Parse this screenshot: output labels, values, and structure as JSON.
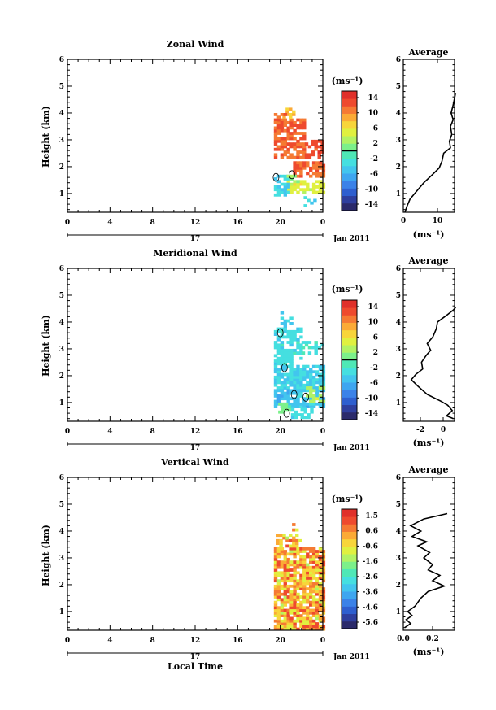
{
  "chart_data": [
    {
      "type": "heatmap",
      "title": "Zonal Wind",
      "ylabel": "Height (km)",
      "xlabel": "",
      "xticks": [
        "0",
        "4",
        "8",
        "12",
        "16",
        "20",
        "0"
      ],
      "date_label": "17",
      "date_suffix": "Jan 2011",
      "xlim": [
        0,
        24
      ],
      "ylim": [
        0.3,
        6
      ],
      "yticks": [
        "1",
        "2",
        "3",
        "4",
        "5",
        "6"
      ],
      "colorbar": {
        "unit": "(ms⁻¹)",
        "ticks": [
          "14",
          "10",
          "6",
          "2",
          "-2",
          "-6",
          "-10",
          "-14"
        ],
        "range": [
          -16,
          16
        ],
        "zero_line": true
      },
      "data_extent": {
        "time_start": 19.4,
        "time_end": 24,
        "height_min": 0.5,
        "height_max": 4.2
      },
      "blocks": [
        {
          "t0": 19.4,
          "t1": 22.3,
          "h0": 2.3,
          "h1": 3.8,
          "value": 12,
          "fill": 0.75
        },
        {
          "t0": 22.3,
          "t1": 24.0,
          "h0": 2.3,
          "h1": 3.0,
          "value": 13,
          "fill": 0.55
        },
        {
          "t0": 20.2,
          "t1": 21.2,
          "h0": 3.8,
          "h1": 4.2,
          "value": 8,
          "fill": 0.55
        },
        {
          "t0": 19.4,
          "t1": 20.4,
          "h0": 3.5,
          "h1": 4.0,
          "value": 11,
          "fill": 0.5
        },
        {
          "t0": 21.2,
          "t1": 24.0,
          "h0": 1.6,
          "h1": 2.2,
          "value": 12,
          "fill": 0.8
        },
        {
          "t0": 20.6,
          "t1": 24.0,
          "h0": 1.0,
          "h1": 1.5,
          "value": 5,
          "fill": 0.75
        },
        {
          "t0": 19.4,
          "t1": 20.8,
          "h0": 0.9,
          "h1": 1.7,
          "value": -4,
          "fill": 0.65
        },
        {
          "t0": 20.6,
          "t1": 21.6,
          "h0": 1.4,
          "h1": 1.7,
          "value": 2,
          "fill": 0.6
        },
        {
          "t0": 22.2,
          "t1": 23.8,
          "h0": 0.5,
          "h1": 0.9,
          "value": -4,
          "fill": 0.4
        }
      ],
      "contours": [
        {
          "t": 19.6,
          "h": 1.6
        },
        {
          "t": 21.1,
          "h": 1.7
        }
      ],
      "average": {
        "title": "Average",
        "xlabel": "(ms⁻¹)",
        "xlim": [
          0,
          15
        ],
        "xticks": [
          0,
          10
        ],
        "ylim": [
          0.3,
          6
        ],
        "yticks": [
          "1",
          "2",
          "3",
          "4",
          "5",
          "6"
        ],
        "profile": [
          [
            0.5,
            0.3
          ],
          [
            1.0,
            0.5
          ],
          [
            2.0,
            0.8
          ],
          [
            4.0,
            1.1
          ],
          [
            6.0,
            1.4
          ],
          [
            8.5,
            1.7
          ],
          [
            10.5,
            1.95
          ],
          [
            11.3,
            2.2
          ],
          [
            11.8,
            2.5
          ],
          [
            13.8,
            2.7
          ],
          [
            13.5,
            2.95
          ],
          [
            14.2,
            3.2
          ],
          [
            13.8,
            3.5
          ],
          [
            14.6,
            3.75
          ],
          [
            14.0,
            4.0
          ],
          [
            14.6,
            4.3
          ],
          [
            15.0,
            4.55
          ],
          [
            15.3,
            4.75
          ]
        ]
      }
    },
    {
      "type": "heatmap",
      "title": "Meridional Wind",
      "ylabel": "Height (km)",
      "xlabel": "",
      "xticks": [
        "0",
        "4",
        "8",
        "12",
        "16",
        "20",
        "0"
      ],
      "date_label": "17",
      "date_suffix": "Jan 2011",
      "xlim": [
        0,
        24
      ],
      "ylim": [
        0.3,
        6
      ],
      "yticks": [
        "1",
        "2",
        "3",
        "4",
        "5",
        "6"
      ],
      "colorbar": {
        "unit": "(ms⁻¹)",
        "ticks": [
          "14",
          "10",
          "6",
          "2",
          "-2",
          "-6",
          "-10",
          "-14"
        ],
        "range": [
          -16,
          16
        ],
        "zero_line": true
      },
      "data_extent": {
        "time_start": 19.4,
        "time_end": 24,
        "height_min": 0.4,
        "height_max": 4.4
      },
      "blocks": [
        {
          "t0": 19.4,
          "t1": 22.0,
          "h0": 2.4,
          "h1": 3.8,
          "value": -3,
          "fill": 0.65
        },
        {
          "t0": 22.0,
          "t1": 24.0,
          "h0": 2.8,
          "h1": 3.3,
          "value": -2,
          "fill": 0.45
        },
        {
          "t0": 19.4,
          "t1": 24.0,
          "h0": 1.5,
          "h1": 2.4,
          "value": -4,
          "fill": 0.8
        },
        {
          "t0": 19.4,
          "t1": 24.0,
          "h0": 0.8,
          "h1": 1.5,
          "value": -5,
          "fill": 0.7
        },
        {
          "t0": 19.8,
          "t1": 21.0,
          "h0": 0.6,
          "h1": 1.0,
          "value": 1,
          "fill": 0.6
        },
        {
          "t0": 21.0,
          "t1": 23.0,
          "h0": 0.4,
          "h1": 0.8,
          "value": -3,
          "fill": 0.5
        },
        {
          "t0": 20.0,
          "t1": 21.2,
          "h0": 3.8,
          "h1": 4.4,
          "value": -4,
          "fill": 0.45
        },
        {
          "t0": 22.4,
          "t1": 24.0,
          "h0": 1.0,
          "h1": 1.6,
          "value": 3,
          "fill": 0.45
        }
      ],
      "contours": [
        {
          "t": 20.0,
          "h": 3.6
        },
        {
          "t": 20.4,
          "h": 2.3
        },
        {
          "t": 21.3,
          "h": 1.3
        },
        {
          "t": 22.4,
          "h": 1.2
        },
        {
          "t": 20.6,
          "h": 0.6
        }
      ],
      "average": {
        "title": "Average",
        "xlabel": "(ms⁻¹)",
        "xlim": [
          -3.5,
          1
        ],
        "xticks": [
          -2,
          0
        ],
        "ylim": [
          0.3,
          6
        ],
        "yticks": [
          "1",
          "2",
          "3",
          "4",
          "5",
          "6"
        ],
        "profile": [
          [
            0.9,
            0.4
          ],
          [
            0.3,
            0.5
          ],
          [
            0.8,
            0.7
          ],
          [
            0.4,
            0.9
          ],
          [
            -0.2,
            1.05
          ],
          [
            -1.4,
            1.3
          ],
          [
            -2.2,
            1.6
          ],
          [
            -2.8,
            1.85
          ],
          [
            -2.4,
            2.05
          ],
          [
            -1.8,
            2.25
          ],
          [
            -1.9,
            2.5
          ],
          [
            -1.5,
            2.75
          ],
          [
            -1.1,
            2.95
          ],
          [
            -1.4,
            3.2
          ],
          [
            -0.9,
            3.45
          ],
          [
            -0.6,
            3.75
          ],
          [
            -0.5,
            4.0
          ],
          [
            0.3,
            4.25
          ],
          [
            0.9,
            4.45
          ],
          [
            1.1,
            4.55
          ]
        ]
      }
    },
    {
      "type": "heatmap",
      "title": "Vertical Wind",
      "ylabel": "Height (km)",
      "xlabel": "Local Time",
      "xticks": [
        "0",
        "4",
        "8",
        "12",
        "16",
        "20",
        "0"
      ],
      "date_label": "17",
      "date_suffix": "Jan 2011",
      "xlim": [
        0,
        24
      ],
      "ylim": [
        0.3,
        6
      ],
      "yticks": [
        "1",
        "2",
        "3",
        "4",
        "5",
        "6"
      ],
      "colorbar": {
        "unit": "(ms⁻¹)",
        "ticks": [
          "1.5",
          "0.6",
          "-0.6",
          "-1.6",
          "-2.6",
          "-3.6",
          "-4.6",
          "-5.6"
        ],
        "range": [
          -6,
          2
        ],
        "zero_line": false
      },
      "data_extent": {
        "time_start": 19.4,
        "time_end": 24,
        "height_min": 0.3,
        "height_max": 4.3
      },
      "blocks": [
        {
          "t0": 19.4,
          "t1": 24.0,
          "h0": 0.3,
          "h1": 3.4,
          "value": 0.2,
          "fill": 0.85
        },
        {
          "t0": 19.6,
          "t1": 22.0,
          "h0": 3.4,
          "h1": 3.9,
          "value": 0.1,
          "fill": 0.55
        },
        {
          "t0": 20.8,
          "t1": 21.6,
          "h0": 3.9,
          "h1": 4.3,
          "value": 0.3,
          "fill": 0.3
        }
      ],
      "contours": [],
      "average": {
        "title": "Average",
        "xlabel": "(ms⁻¹)",
        "xlim": [
          0,
          0.35
        ],
        "xticks": [
          0.0,
          0.2
        ],
        "ylim": [
          0.3,
          6
        ],
        "yticks": [
          "1",
          "2",
          "3",
          "4",
          "5",
          "6"
        ],
        "profile": [
          [
            0.01,
            0.4
          ],
          [
            0.05,
            0.55
          ],
          [
            0.02,
            0.7
          ],
          [
            0.06,
            0.85
          ],
          [
            0.03,
            1.0
          ],
          [
            0.08,
            1.2
          ],
          [
            0.12,
            1.5
          ],
          [
            0.17,
            1.75
          ],
          [
            0.28,
            1.95
          ],
          [
            0.2,
            2.15
          ],
          [
            0.25,
            2.35
          ],
          [
            0.17,
            2.55
          ],
          [
            0.2,
            2.75
          ],
          [
            0.14,
            3.0
          ],
          [
            0.18,
            3.2
          ],
          [
            0.1,
            3.45
          ],
          [
            0.16,
            3.6
          ],
          [
            0.06,
            3.8
          ],
          [
            0.12,
            4.0
          ],
          [
            0.05,
            4.2
          ],
          [
            0.14,
            4.45
          ],
          [
            0.3,
            4.65
          ]
        ]
      }
    }
  ]
}
